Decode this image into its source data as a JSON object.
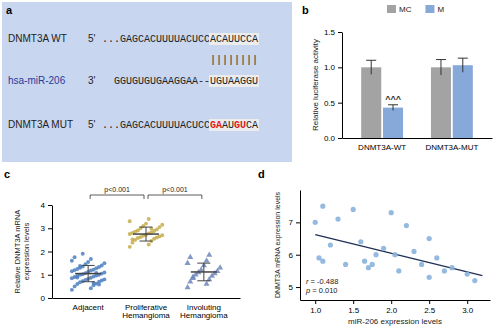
{
  "alignment": {
    "label": "a",
    "rows": [
      {
        "name": "DNMT3A WT",
        "end": "5'",
        "sequence": "...GAGCACUUUUACUCC",
        "site": [
          {
            "text": "ACAUUCCA",
            "mutated": false
          }
        ]
      },
      {
        "name": "hsa-miR-206",
        "end": "3'",
        "sequence": "GGUGUGUGAAGGAA--",
        "site": [
          {
            "text": "UGUAAGGU",
            "mutated": false
          }
        ],
        "color": "#2a3a9a"
      },
      {
        "name": "DNMT3A MUT",
        "end": "5'",
        "sequence": "...GAGCACUUUUACUCC",
        "site": [
          {
            "text": "GA",
            "mutated": true
          },
          {
            "text": "AU",
            "mutated": false
          },
          {
            "text": "GU",
            "mutated": true
          },
          {
            "text": "CA",
            "mutated": false
          }
        ]
      }
    ],
    "pairing": "||||||||"
  },
  "chart_data": [
    {
      "type": "bar",
      "title": "b",
      "categories": [
        "DNMT3A-WT",
        "DNMT3A-MUT"
      ],
      "series": [
        {
          "name": "MC",
          "color": "#a3a3a3",
          "values": [
            1.0,
            1.0
          ],
          "errors": [
            0.1,
            0.11
          ]
        },
        {
          "name": "M",
          "color": "#86a9d9",
          "values": [
            0.43,
            1.03
          ],
          "errors": [
            0.04,
            0.1
          ]
        }
      ],
      "ylim": [
        0,
        1.5
      ],
      "yticks": [
        {
          "value": 0,
          "label": "0.0"
        },
        0.5,
        {
          "value": 1,
          "label": "1.0"
        },
        1.5
      ],
      "y_label": "Relative luciferase activity",
      "legend": "top",
      "annotations": [
        "^^^"
      ]
    },
    {
      "type": "strip",
      "title": "c",
      "categories": [
        "Adjacent",
        "Proliferative Hemangioma",
        "Involuting Hemangioma"
      ],
      "values": [
        [
          0.35,
          0.42,
          0.5,
          0.55,
          0.6,
          0.62,
          0.68,
          0.7,
          0.72,
          0.75,
          0.78,
          0.8,
          0.82,
          0.85,
          0.87,
          0.9,
          0.92,
          0.95,
          0.97,
          1.0,
          1.0,
          1.02,
          1.05,
          1.07,
          1.1,
          1.12,
          1.15,
          1.18,
          1.2,
          1.22,
          1.25,
          1.28,
          1.3,
          1.33,
          1.35,
          1.4,
          1.45,
          1.5,
          1.55,
          1.6,
          1.68,
          1.75,
          0.65,
          0.88,
          1.08,
          1.38,
          0.58,
          1.9
        ],
        [
          2.2,
          2.3,
          2.38,
          2.45,
          2.5,
          2.55,
          2.58,
          2.6,
          2.62,
          2.65,
          2.68,
          2.7,
          2.72,
          2.75,
          2.78,
          2.8,
          2.82,
          2.85,
          2.88,
          2.9,
          2.95,
          3.0,
          3.05,
          3.1,
          3.15,
          3.2,
          3.3,
          3.4,
          2.52,
          2.98
        ],
        [
          0.45,
          0.6,
          0.7,
          0.8,
          0.9,
          0.95,
          1.0,
          1.05,
          1.1,
          1.15,
          1.2,
          1.3,
          1.4,
          1.5,
          1.6,
          1.75,
          1.85,
          0.85
        ]
      ],
      "colors": [
        "#4c7fbf",
        "#c4ad4a",
        "#6e86b8"
      ],
      "marker": [
        "circle",
        "circle",
        "triangle"
      ],
      "mean": [
        1.05,
        2.75,
        1.12
      ],
      "sd": [
        0.35,
        0.3,
        0.38
      ],
      "ylim": [
        0,
        4
      ],
      "yticks": [
        0,
        1,
        2,
        3,
        4
      ],
      "y_label": "Relative DNMT3A mRNA expression levels",
      "annotations": [
        "p<0.001",
        "p<0.001"
      ]
    },
    {
      "type": "scatter",
      "title": "d",
      "x": [
        1.0,
        1.05,
        1.1,
        1.1,
        1.2,
        1.3,
        1.4,
        1.5,
        1.6,
        1.65,
        1.7,
        1.75,
        1.8,
        1.9,
        2.0,
        2.05,
        2.1,
        2.3,
        2.4,
        2.5,
        2.5,
        2.6,
        2.7,
        2.8,
        3.0,
        3.1,
        2.2
      ],
      "values": [
        7.0,
        5.9,
        7.5,
        5.8,
        6.3,
        7.1,
        5.7,
        7.4,
        6.4,
        5.8,
        5.6,
        5.7,
        6.0,
        6.2,
        7.3,
        6.0,
        5.5,
        6.1,
        5.7,
        6.5,
        5.3,
        5.9,
        5.5,
        5.6,
        5.4,
        5.2,
        6.9
      ],
      "color": "#8ab3dd",
      "xlim": [
        0.8,
        3.3
      ],
      "xticks": [
        {
          "value": 1,
          "label": "1.0"
        },
        1.5,
        {
          "value": 2,
          "label": "2.0"
        },
        2.5,
        {
          "value": 3,
          "label": "3.0"
        }
      ],
      "ylim": [
        4.6,
        8
      ],
      "yticks": [
        5,
        6,
        7
      ],
      "x_label": "miR-206 expression levels",
      "y_label": "DNMT3A mRNA expression levels",
      "trend": {
        "x": [
          1.0,
          3.2
        ],
        "y": [
          6.62,
          5.35
        ]
      },
      "annotations": [
        "r = -0.488",
        "p = 0.010"
      ]
    }
  ]
}
